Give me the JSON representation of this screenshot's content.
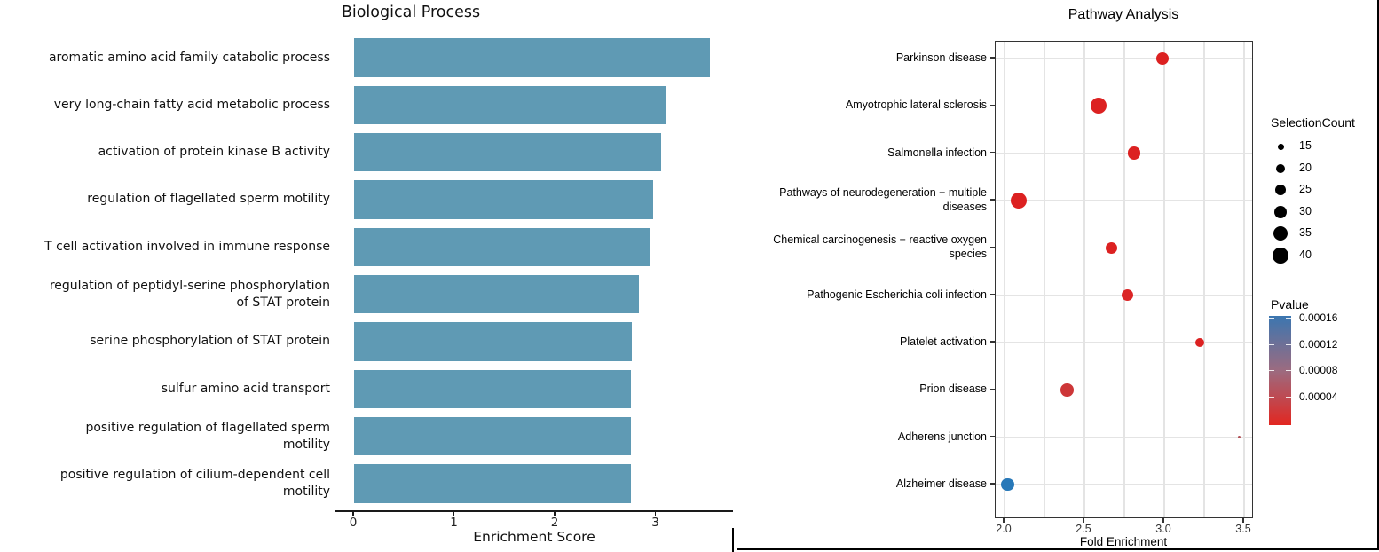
{
  "chart_data": [
    {
      "id": "biological-process",
      "type": "bar",
      "orientation": "horizontal",
      "title": "Biological Process",
      "xlabel": "Enrichment Score",
      "xticks": [
        "0",
        "1",
        "2",
        "3"
      ],
      "xlim": [
        0,
        3.75
      ],
      "grid": false,
      "bar_color": "#5F9AB4",
      "categories": [
        {
          "lines": [
            "aromatic amino acid family catabolic process"
          ],
          "value": 3.53
        },
        {
          "lines": [
            "very long-chain fatty acid metabolic process"
          ],
          "value": 3.1
        },
        {
          "lines": [
            "activation of protein kinase B activity"
          ],
          "value": 3.05
        },
        {
          "lines": [
            "regulation of flagellated sperm motility"
          ],
          "value": 2.97
        },
        {
          "lines": [
            "T cell activation involved in immune response"
          ],
          "value": 2.93
        },
        {
          "lines": [
            "regulation of peptidyl-serine phosphorylation",
            "of STAT protein"
          ],
          "value": 2.83
        },
        {
          "lines": [
            "serine phosphorylation of STAT protein"
          ],
          "value": 2.76
        },
        {
          "lines": [
            "sulfur amino acid transport"
          ],
          "value": 2.75
        },
        {
          "lines": [
            "positive regulation of flagellated sperm",
            "motility"
          ],
          "value": 2.75
        },
        {
          "lines": [
            "positive regulation of cilium-dependent cell",
            "motility"
          ],
          "value": 2.75
        }
      ]
    },
    {
      "id": "pathway-analysis",
      "type": "scatter",
      "title": "Pathway Analysis",
      "xlabel": "Fold Enrichment",
      "xticks": [
        "2.0",
        "2.5",
        "3.0",
        "3.5"
      ],
      "xlim": [
        1.94,
        3.56
      ],
      "grid": true,
      "gridline_step": 0.25,
      "points": [
        {
          "lines": [
            "Parkinson disease"
          ],
          "fold_enrichment": 2.99,
          "selection_count": 30,
          "pvalue": 1e-05,
          "color": "#DC2121"
        },
        {
          "lines": [
            "Amyotrophic lateral sclerosis"
          ],
          "fold_enrichment": 2.59,
          "selection_count": 42,
          "pvalue": 1e-05,
          "color": "#DC2121"
        },
        {
          "lines": [
            "Salmonella infection"
          ],
          "fold_enrichment": 2.81,
          "selection_count": 31,
          "pvalue": 1e-05,
          "color": "#DC2121"
        },
        {
          "lines": [
            "Pathways of neurodegeneration − multiple",
            "diseases"
          ],
          "fold_enrichment": 2.09,
          "selection_count": 42,
          "pvalue": 1e-05,
          "color": "#DC2121"
        },
        {
          "lines": [
            "Chemical carcinogenesis − reactive oxygen",
            "species"
          ],
          "fold_enrichment": 2.67,
          "selection_count": 28,
          "pvalue": 1e-05,
          "color": "#DC2121"
        },
        {
          "lines": [
            "Pathogenic Escherichia coli infection"
          ],
          "fold_enrichment": 2.77,
          "selection_count": 28,
          "pvalue": 2e-05,
          "color": "#DB2526"
        },
        {
          "lines": [
            "Platelet activation"
          ],
          "fold_enrichment": 3.22,
          "selection_count": 20,
          "pvalue": 1e-05,
          "color": "#DC2121"
        },
        {
          "lines": [
            "Prion disease"
          ],
          "fold_enrichment": 2.39,
          "selection_count": 32,
          "pvalue": 3e-05,
          "color": "#CD3638"
        },
        {
          "lines": [
            "Adherens junction"
          ],
          "fold_enrichment": 3.47,
          "selection_count": 8,
          "pvalue": 7e-05,
          "color": "#B04F55"
        },
        {
          "lines": [
            "Alzheimer disease"
          ],
          "fold_enrichment": 2.02,
          "selection_count": 32,
          "pvalue": 0.00016,
          "color": "#2878B8"
        }
      ],
      "legend_size": {
        "title": "SelectionCount",
        "values": [
          "15",
          "20",
          "25",
          "30",
          "35",
          "40"
        ],
        "dot_color": "#000000"
      },
      "legend_color": {
        "title": "Pvalue",
        "tick_labels": [
          "0.00016",
          "0.00012",
          "0.00008",
          "0.00004"
        ],
        "gradient_top": "#3B76B0",
        "gradient_mid": "#9C6B80",
        "gradient_bottom": "#E22721"
      }
    }
  ]
}
